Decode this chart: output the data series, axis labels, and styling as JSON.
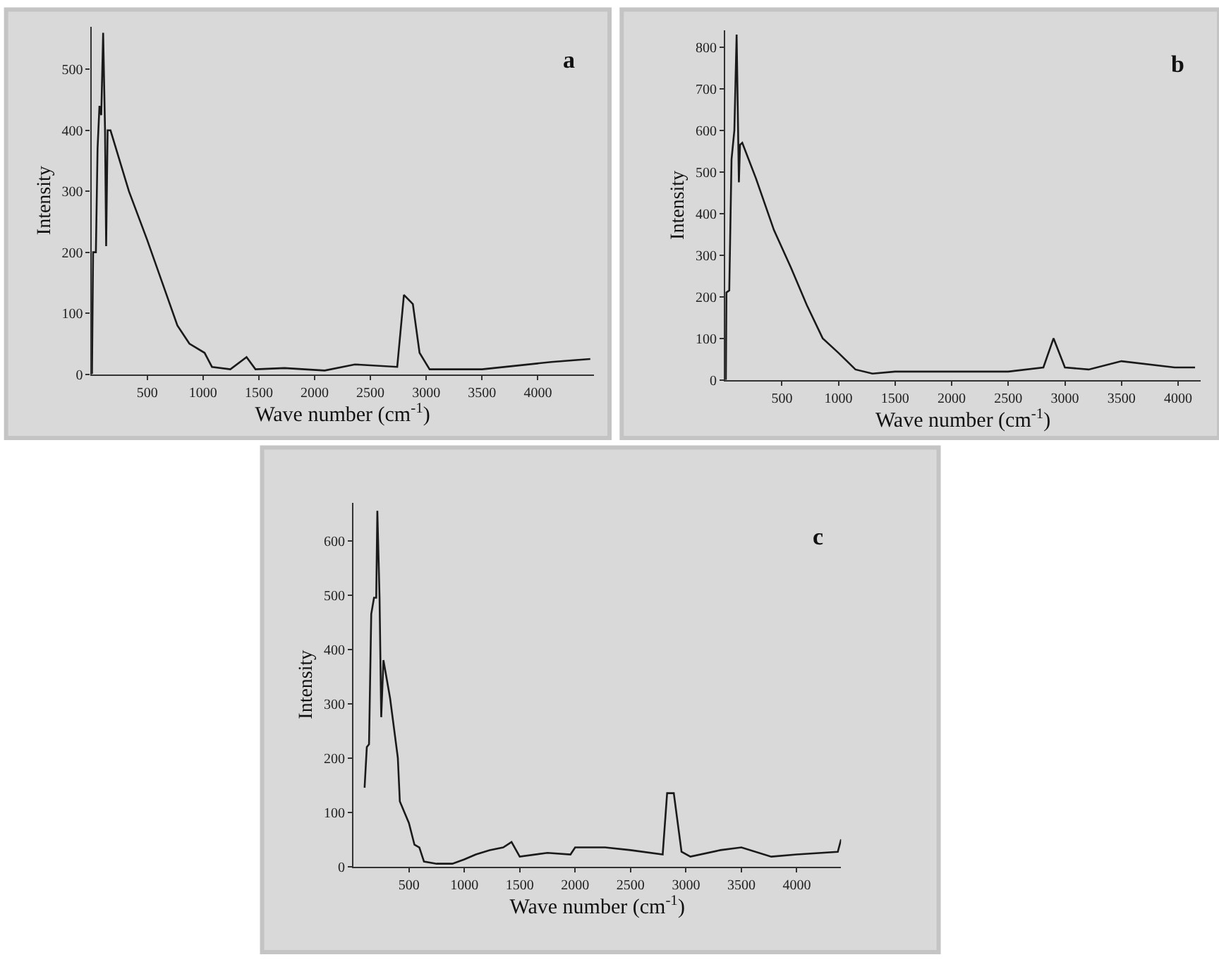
{
  "chart_data": [
    {
      "type": "line",
      "color": "#1a1a1a",
      "marker": "none",
      "line_style": "solid",
      "grid": false,
      "xlabel": "Wave number (cm$^{-1}$)",
      "ylabel": "Intensity",
      "annotations": [
        "a"
      ],
      "x": [
        5,
        15,
        40,
        55,
        72,
        88,
        105,
        122,
        132,
        145,
        171,
        237,
        336,
        500,
        635,
        770,
        878,
        1014,
        1080,
        1245,
        1390,
        1470,
        1730,
        2090,
        2360,
        2740,
        2800,
        2880,
        2940,
        3030,
        3500,
        4120,
        4470
      ],
      "values": [
        0,
        200,
        200,
        370,
        440,
        425,
        560,
        400,
        210,
        400,
        400,
        360,
        300,
        220,
        150,
        80,
        50,
        35,
        12,
        8,
        28,
        8,
        10,
        6,
        16,
        12,
        130,
        115,
        35,
        8,
        8,
        20,
        25
      ],
      "xlim": [
        0,
        4500
      ],
      "xticks": [
        500,
        1000,
        1500,
        2000,
        2500,
        3000,
        3500,
        4000
      ],
      "ylim": [
        0,
        570
      ],
      "yticks": [
        0,
        100,
        200,
        300,
        400,
        500
      ]
    },
    {
      "type": "line",
      "color": "#1a1a1a",
      "marker": "none",
      "line_style": "solid",
      "grid": false,
      "xlabel": "Wave number (cm$^{-1}$)",
      "ylabel": "Intensity",
      "annotations": [
        "b"
      ],
      "x": [
        5,
        10,
        35,
        55,
        80,
        100,
        120,
        130,
        150,
        270,
        430,
        580,
        720,
        860,
        1000,
        1150,
        1300,
        1500,
        1770,
        2000,
        2500,
        2810,
        2900,
        3000,
        3210,
        3500,
        3970,
        4150
      ],
      "values": [
        0,
        210,
        215,
        530,
        600,
        830,
        475,
        565,
        570,
        485,
        360,
        270,
        180,
        100,
        65,
        25,
        15,
        20,
        20,
        20,
        20,
        30,
        100,
        30,
        25,
        45,
        30,
        30
      ],
      "xlim": [
        0,
        4200
      ],
      "xticks": [
        500,
        1000,
        1500,
        2000,
        2500,
        3000,
        3500,
        4000
      ],
      "ylim": [
        0,
        840
      ],
      "yticks": [
        0,
        100,
        200,
        300,
        400,
        500,
        600,
        700,
        800
      ]
    },
    {
      "type": "line",
      "color": "#1a1a1a",
      "marker": "none",
      "line_style": "solid",
      "grid": false,
      "xlabel": "Wave number (cm$^{-1}$)",
      "ylabel": "Intensity",
      "annotations": [
        "c"
      ],
      "x": [
        100,
        120,
        140,
        160,
        185,
        205,
        215,
        235,
        250,
        270,
        330,
        400,
        418,
        500,
        550,
        594,
        636,
        750,
        892,
        1000,
        1104,
        1228,
        1351,
        1426,
        1500,
        1750,
        1958,
        2000,
        2270,
        2500,
        2790,
        2830,
        2890,
        2960,
        3040,
        3310,
        3500,
        3770,
        4000,
        4370,
        4400
      ],
      "values": [
        145,
        220,
        225,
        465,
        495,
        495,
        655,
        495,
        275,
        380,
        310,
        200,
        120,
        80,
        40,
        35,
        9,
        5,
        5,
        13,
        22,
        30,
        35,
        45,
        18,
        25,
        22,
        35,
        35,
        30,
        22,
        135,
        135,
        27,
        18,
        30,
        35,
        18,
        22,
        27,
        50
      ],
      "xlim": [
        0,
        4400
      ],
      "xticks": [
        500,
        1000,
        1500,
        2000,
        2500,
        3000,
        3500,
        4000
      ],
      "ylim": [
        0,
        670
      ],
      "yticks": [
        0,
        100,
        200,
        300,
        400,
        500,
        600
      ]
    }
  ]
}
